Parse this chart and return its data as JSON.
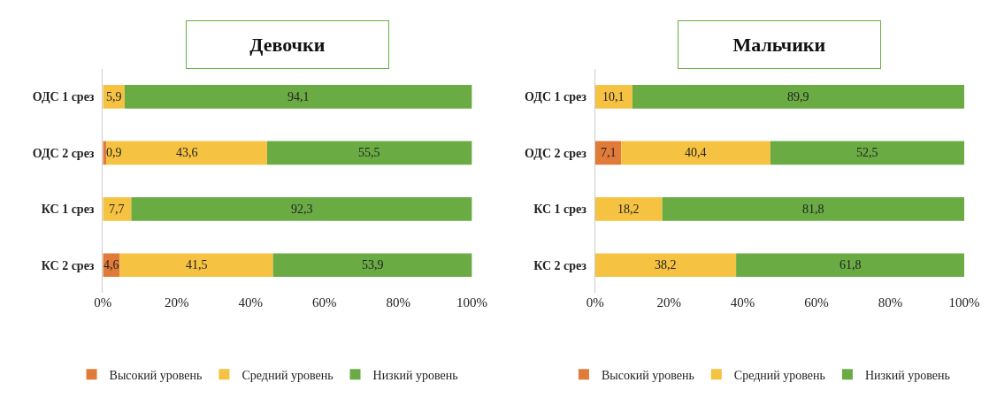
{
  "chart_data": [
    {
      "type": "bar",
      "title": "Девочки",
      "orientation": "horizontal",
      "stacked": true,
      "categories": [
        "ОДС 1 срез",
        "ОДС 2 срез",
        "КС 1 срез",
        "КС 2 срез"
      ],
      "xlim": [
        0,
        100
      ],
      "xticks": [
        {
          "value": 0,
          "label": "0%"
        },
        {
          "value": 20,
          "label": "20%"
        },
        {
          "value": 40,
          "label": "40%"
        },
        {
          "value": 60,
          "label": "60%"
        },
        {
          "value": 80,
          "label": "80%"
        },
        {
          "value": 100,
          "label": "100%"
        }
      ],
      "legend": "bottom",
      "series": [
        {
          "name": "Высокий уровень",
          "color": "#e07b39",
          "values": [
            0,
            0.9,
            0,
            4.6
          ],
          "value_labels": [
            null,
            "0,9",
            null,
            "4,6"
          ]
        },
        {
          "name": "Средний уровень",
          "color": "#f5c242",
          "values": [
            5.9,
            43.6,
            7.7,
            41.5
          ],
          "value_labels": [
            "5,9",
            "43,6",
            "7,7",
            "41,5"
          ]
        },
        {
          "name": "Низкий уровень",
          "color": "#6aab44",
          "values": [
            94.1,
            55.5,
            92.3,
            53.9
          ],
          "value_labels": [
            "94,1",
            "55,5",
            "92,3",
            "53,9"
          ]
        }
      ]
    },
    {
      "type": "bar",
      "title": "Мальчики",
      "orientation": "horizontal",
      "stacked": true,
      "categories": [
        "ОДС 1 срез",
        "ОДС 2 срез",
        "КС 1 срез",
        "КС 2 срез"
      ],
      "xlim": [
        0,
        100
      ],
      "xticks": [
        {
          "value": 0,
          "label": "0%"
        },
        {
          "value": 20,
          "label": "20%"
        },
        {
          "value": 40,
          "label": "40%"
        },
        {
          "value": 60,
          "label": "60%"
        },
        {
          "value": 80,
          "label": "80%"
        },
        {
          "value": 100,
          "label": "100%"
        }
      ],
      "legend": "bottom",
      "series": [
        {
          "name": "Высокий уровень",
          "color": "#e07b39",
          "values": [
            0,
            7.1,
            0,
            0
          ],
          "value_labels": [
            null,
            "7,1",
            null,
            null
          ]
        },
        {
          "name": "Средний уровень",
          "color": "#f5c242",
          "values": [
            10.1,
            40.4,
            18.2,
            38.2
          ],
          "value_labels": [
            "10,1",
            "40,4",
            "18,2",
            "38,2"
          ]
        },
        {
          "name": "Низкий уровень",
          "color": "#6aab44",
          "values": [
            89.9,
            52.5,
            81.8,
            61.8
          ],
          "value_labels": [
            "89,9",
            "52,5",
            "81,8",
            "61,8"
          ]
        }
      ]
    }
  ]
}
